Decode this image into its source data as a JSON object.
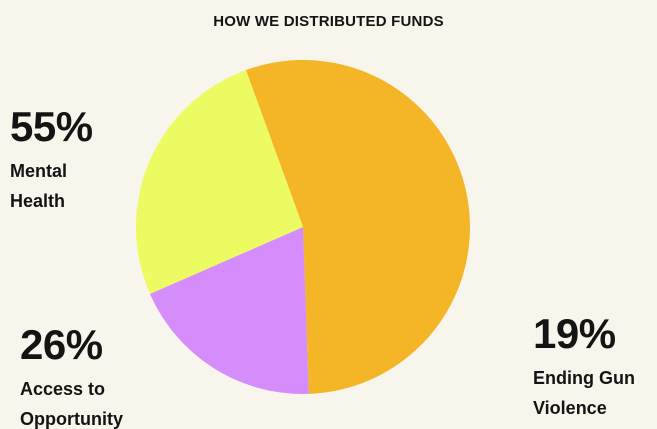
{
  "chart_data": {
    "type": "pie",
    "title": "HOW WE DISTRIBUTED FUNDS",
    "slices": [
      {
        "label_line1": "Mental",
        "label_line2": "Health",
        "value": 55,
        "value_label": "55%",
        "color": "#f4b526"
      },
      {
        "label_line1": "Ending Gun",
        "label_line2": "Violence",
        "value": 19,
        "value_label": "19%",
        "color": "#d58dfb"
      },
      {
        "label_line1": "Access to",
        "label_line2": "Opportunity",
        "value": 26,
        "value_label": "26%",
        "color": "#edfb63"
      }
    ],
    "legend": "none",
    "grid": false
  }
}
